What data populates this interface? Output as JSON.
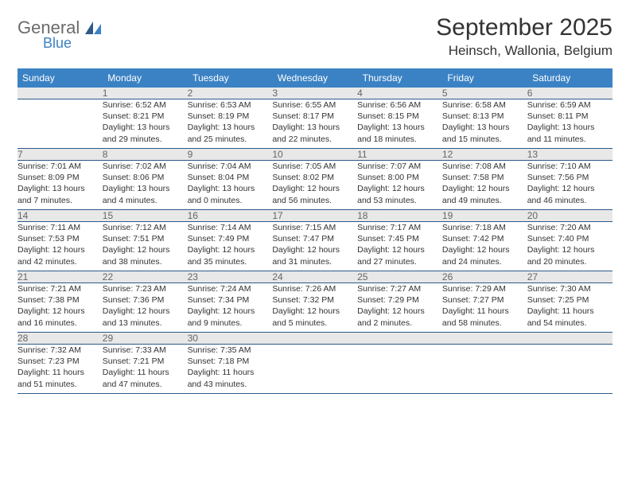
{
  "logo": {
    "word1": "General",
    "word2": "Blue"
  },
  "title": "September 2025",
  "location": "Heinsch, Wallonia, Belgium",
  "colors": {
    "header_bg": "#3b82c4",
    "daynum_bg": "#e8e8e8",
    "row_border": "#2d5a8a",
    "logo_gray": "#6b6b6b",
    "logo_blue": "#3b82c4"
  },
  "weekdays": [
    "Sunday",
    "Monday",
    "Tuesday",
    "Wednesday",
    "Thursday",
    "Friday",
    "Saturday"
  ],
  "weeks": [
    {
      "nums": [
        "",
        "1",
        "2",
        "3",
        "4",
        "5",
        "6"
      ],
      "cells": [
        {},
        {
          "sunrise": "Sunrise: 6:52 AM",
          "sunset": "Sunset: 8:21 PM",
          "day1": "Daylight: 13 hours",
          "day2": "and 29 minutes."
        },
        {
          "sunrise": "Sunrise: 6:53 AM",
          "sunset": "Sunset: 8:19 PM",
          "day1": "Daylight: 13 hours",
          "day2": "and 25 minutes."
        },
        {
          "sunrise": "Sunrise: 6:55 AM",
          "sunset": "Sunset: 8:17 PM",
          "day1": "Daylight: 13 hours",
          "day2": "and 22 minutes."
        },
        {
          "sunrise": "Sunrise: 6:56 AM",
          "sunset": "Sunset: 8:15 PM",
          "day1": "Daylight: 13 hours",
          "day2": "and 18 minutes."
        },
        {
          "sunrise": "Sunrise: 6:58 AM",
          "sunset": "Sunset: 8:13 PM",
          "day1": "Daylight: 13 hours",
          "day2": "and 15 minutes."
        },
        {
          "sunrise": "Sunrise: 6:59 AM",
          "sunset": "Sunset: 8:11 PM",
          "day1": "Daylight: 13 hours",
          "day2": "and 11 minutes."
        }
      ]
    },
    {
      "nums": [
        "7",
        "8",
        "9",
        "10",
        "11",
        "12",
        "13"
      ],
      "cells": [
        {
          "sunrise": "Sunrise: 7:01 AM",
          "sunset": "Sunset: 8:09 PM",
          "day1": "Daylight: 13 hours",
          "day2": "and 7 minutes."
        },
        {
          "sunrise": "Sunrise: 7:02 AM",
          "sunset": "Sunset: 8:06 PM",
          "day1": "Daylight: 13 hours",
          "day2": "and 4 minutes."
        },
        {
          "sunrise": "Sunrise: 7:04 AM",
          "sunset": "Sunset: 8:04 PM",
          "day1": "Daylight: 13 hours",
          "day2": "and 0 minutes."
        },
        {
          "sunrise": "Sunrise: 7:05 AM",
          "sunset": "Sunset: 8:02 PM",
          "day1": "Daylight: 12 hours",
          "day2": "and 56 minutes."
        },
        {
          "sunrise": "Sunrise: 7:07 AM",
          "sunset": "Sunset: 8:00 PM",
          "day1": "Daylight: 12 hours",
          "day2": "and 53 minutes."
        },
        {
          "sunrise": "Sunrise: 7:08 AM",
          "sunset": "Sunset: 7:58 PM",
          "day1": "Daylight: 12 hours",
          "day2": "and 49 minutes."
        },
        {
          "sunrise": "Sunrise: 7:10 AM",
          "sunset": "Sunset: 7:56 PM",
          "day1": "Daylight: 12 hours",
          "day2": "and 46 minutes."
        }
      ]
    },
    {
      "nums": [
        "14",
        "15",
        "16",
        "17",
        "18",
        "19",
        "20"
      ],
      "cells": [
        {
          "sunrise": "Sunrise: 7:11 AM",
          "sunset": "Sunset: 7:53 PM",
          "day1": "Daylight: 12 hours",
          "day2": "and 42 minutes."
        },
        {
          "sunrise": "Sunrise: 7:12 AM",
          "sunset": "Sunset: 7:51 PM",
          "day1": "Daylight: 12 hours",
          "day2": "and 38 minutes."
        },
        {
          "sunrise": "Sunrise: 7:14 AM",
          "sunset": "Sunset: 7:49 PM",
          "day1": "Daylight: 12 hours",
          "day2": "and 35 minutes."
        },
        {
          "sunrise": "Sunrise: 7:15 AM",
          "sunset": "Sunset: 7:47 PM",
          "day1": "Daylight: 12 hours",
          "day2": "and 31 minutes."
        },
        {
          "sunrise": "Sunrise: 7:17 AM",
          "sunset": "Sunset: 7:45 PM",
          "day1": "Daylight: 12 hours",
          "day2": "and 27 minutes."
        },
        {
          "sunrise": "Sunrise: 7:18 AM",
          "sunset": "Sunset: 7:42 PM",
          "day1": "Daylight: 12 hours",
          "day2": "and 24 minutes."
        },
        {
          "sunrise": "Sunrise: 7:20 AM",
          "sunset": "Sunset: 7:40 PM",
          "day1": "Daylight: 12 hours",
          "day2": "and 20 minutes."
        }
      ]
    },
    {
      "nums": [
        "21",
        "22",
        "23",
        "24",
        "25",
        "26",
        "27"
      ],
      "cells": [
        {
          "sunrise": "Sunrise: 7:21 AM",
          "sunset": "Sunset: 7:38 PM",
          "day1": "Daylight: 12 hours",
          "day2": "and 16 minutes."
        },
        {
          "sunrise": "Sunrise: 7:23 AM",
          "sunset": "Sunset: 7:36 PM",
          "day1": "Daylight: 12 hours",
          "day2": "and 13 minutes."
        },
        {
          "sunrise": "Sunrise: 7:24 AM",
          "sunset": "Sunset: 7:34 PM",
          "day1": "Daylight: 12 hours",
          "day2": "and 9 minutes."
        },
        {
          "sunrise": "Sunrise: 7:26 AM",
          "sunset": "Sunset: 7:32 PM",
          "day1": "Daylight: 12 hours",
          "day2": "and 5 minutes."
        },
        {
          "sunrise": "Sunrise: 7:27 AM",
          "sunset": "Sunset: 7:29 PM",
          "day1": "Daylight: 12 hours",
          "day2": "and 2 minutes."
        },
        {
          "sunrise": "Sunrise: 7:29 AM",
          "sunset": "Sunset: 7:27 PM",
          "day1": "Daylight: 11 hours",
          "day2": "and 58 minutes."
        },
        {
          "sunrise": "Sunrise: 7:30 AM",
          "sunset": "Sunset: 7:25 PM",
          "day1": "Daylight: 11 hours",
          "day2": "and 54 minutes."
        }
      ]
    },
    {
      "nums": [
        "28",
        "29",
        "30",
        "",
        "",
        "",
        ""
      ],
      "cells": [
        {
          "sunrise": "Sunrise: 7:32 AM",
          "sunset": "Sunset: 7:23 PM",
          "day1": "Daylight: 11 hours",
          "day2": "and 51 minutes."
        },
        {
          "sunrise": "Sunrise: 7:33 AM",
          "sunset": "Sunset: 7:21 PM",
          "day1": "Daylight: 11 hours",
          "day2": "and 47 minutes."
        },
        {
          "sunrise": "Sunrise: 7:35 AM",
          "sunset": "Sunset: 7:18 PM",
          "day1": "Daylight: 11 hours",
          "day2": "and 43 minutes."
        },
        {},
        {},
        {},
        {}
      ]
    }
  ]
}
